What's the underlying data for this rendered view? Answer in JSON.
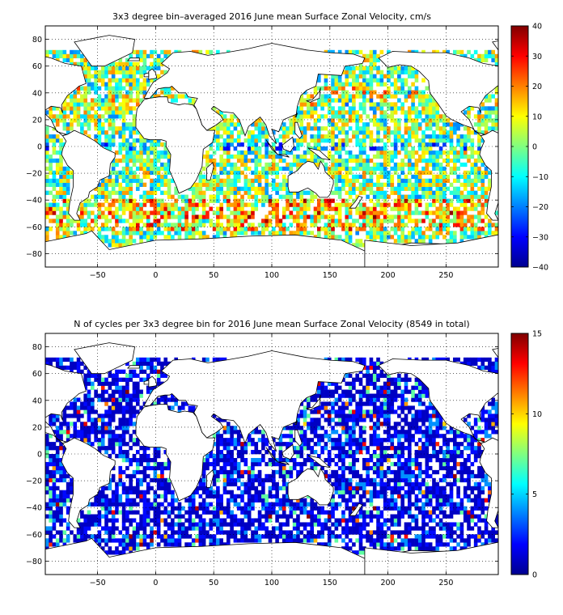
{
  "chart_data": [
    {
      "type": "heatmap",
      "title": "3x3 degree bin–averaged 2016 June mean Surface Zonal Velocity, cm/s",
      "xlabel": "",
      "ylabel": "",
      "xlim": [
        -95,
        295
      ],
      "ylim": [
        -90,
        90
      ],
      "xticks": [
        -50,
        0,
        50,
        100,
        150,
        200,
        250
      ],
      "yticks": [
        80,
        60,
        40,
        20,
        0,
        -20,
        -40,
        -60,
        -80
      ],
      "grid": true,
      "bin_size_deg": 3,
      "colorbar": {
        "min": -40,
        "max": 40,
        "ticks": [
          40,
          30,
          20,
          10,
          0,
          -10,
          -20,
          -30,
          -40
        ],
        "colormap": "jet"
      },
      "colors": {
        "frame": "#000000",
        "land": "#ffffff"
      }
    },
    {
      "type": "heatmap",
      "title": "N of cycles per 3x3 degree bin for 2016 June mean Surface Zonal Velocity (8549 in total)",
      "xlabel": "",
      "ylabel": "",
      "xlim": [
        -95,
        295
      ],
      "ylim": [
        -90,
        90
      ],
      "xticks": [
        -50,
        0,
        50,
        100,
        150,
        200,
        250
      ],
      "yticks": [
        80,
        60,
        40,
        20,
        0,
        -20,
        -40,
        -60,
        -80
      ],
      "grid": true,
      "bin_size_deg": 3,
      "total_cycles": 8549,
      "colorbar": {
        "min": 0,
        "max": 15,
        "ticks": [
          15,
          10,
          5,
          0
        ],
        "colormap": "jet"
      },
      "colors": {
        "frame": "#000000",
        "land": "#ffffff"
      }
    }
  ]
}
